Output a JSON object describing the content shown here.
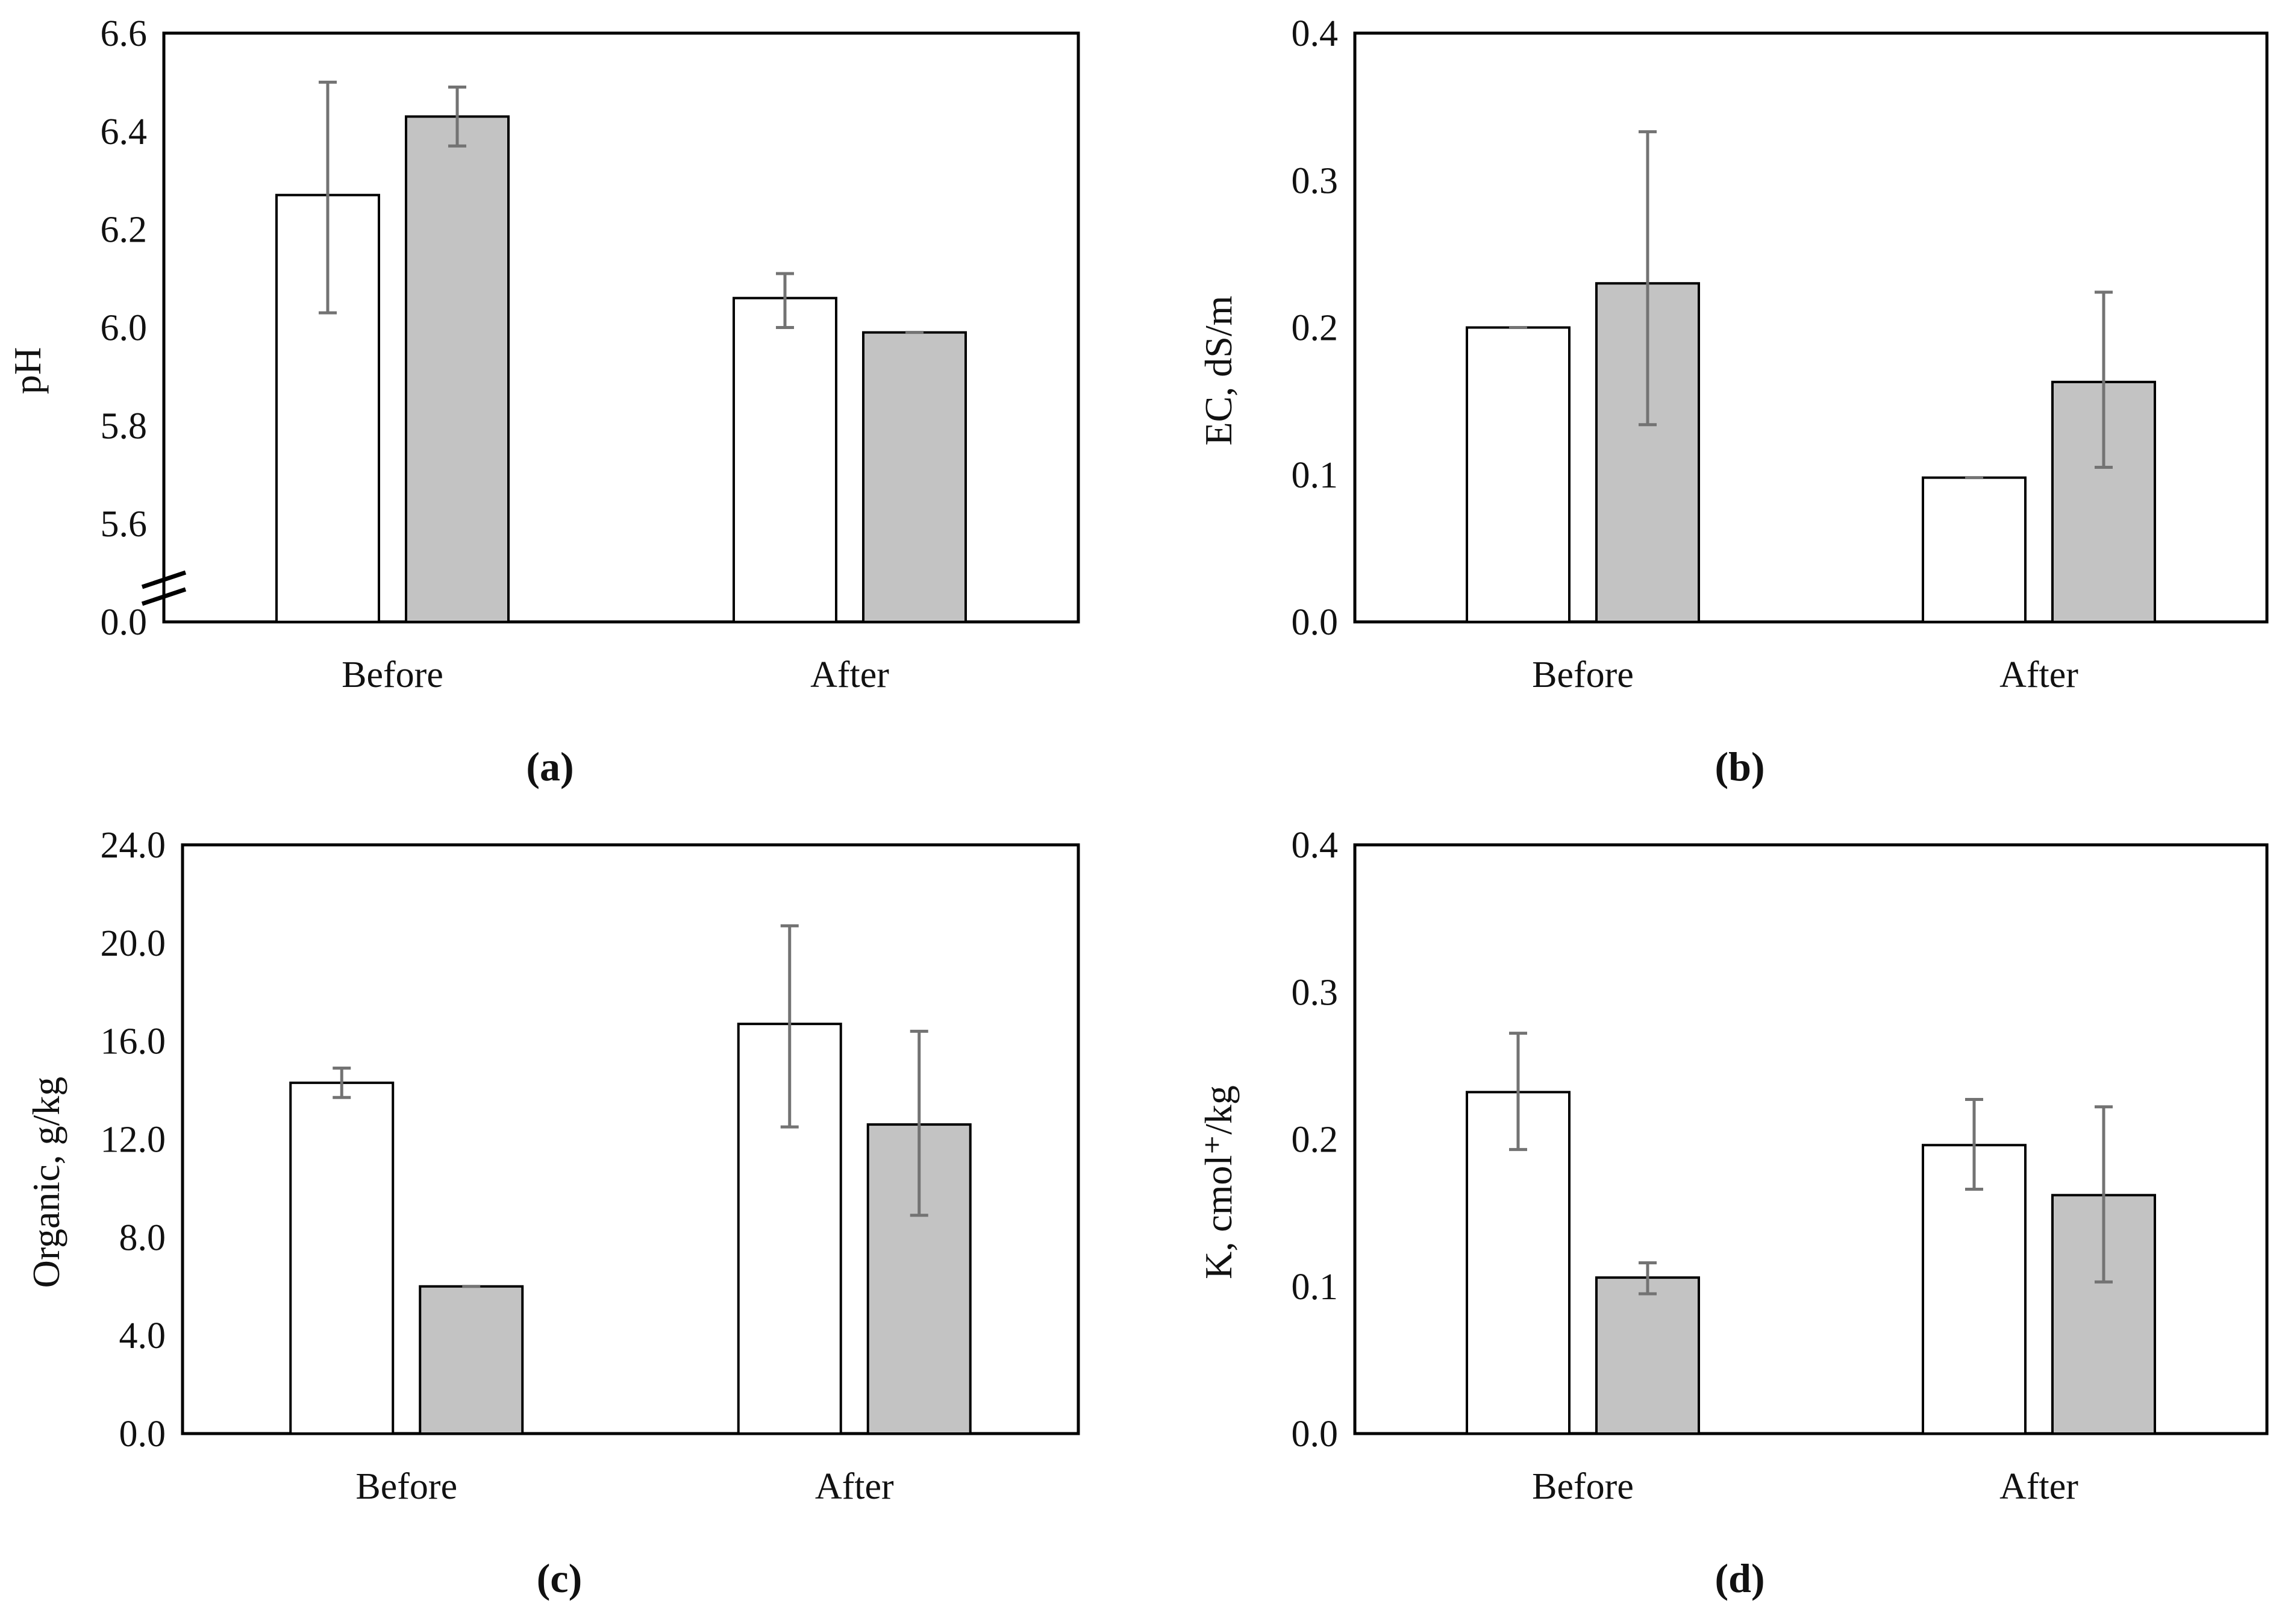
{
  "figure": {
    "background": "#ffffff",
    "colors": {
      "bar_white_fill": "#ffffff",
      "bar_gray_fill": "#c3c3c3",
      "bar_stroke": "#000000",
      "error_bar": "#737373",
      "axis": "#000000",
      "text": "#111111"
    }
  },
  "chart_data": [
    {
      "type": "bar",
      "panel_label": "(a)",
      "title": "",
      "xlabel": "",
      "ylabel": "pH",
      "categories": [
        "Before",
        "After"
      ],
      "yticks": [
        "6.6",
        "6.4",
        "6.2",
        "6.0",
        "5.8",
        "5.6",
        "0.0"
      ],
      "ytick_values": [
        6.6,
        6.4,
        6.2,
        6.0,
        5.8,
        5.6,
        0.0
      ],
      "ylim": [
        0.0,
        6.6
      ],
      "tick_step": 0.2,
      "axis_break": true,
      "break_below_value": 5.5,
      "grid": false,
      "legend": null,
      "series": [
        {
          "name": "white",
          "fill": "bar_white_fill",
          "values": [
            6.27,
            6.06
          ],
          "err_lo": [
            6.03,
            6.0
          ],
          "err_hi": [
            6.5,
            6.11
          ]
        },
        {
          "name": "gray",
          "fill": "bar_gray_fill",
          "values": [
            6.43,
            5.99
          ],
          "err_lo": [
            6.37,
            5.99
          ],
          "err_hi": [
            6.49,
            5.99
          ]
        }
      ]
    },
    {
      "type": "bar",
      "panel_label": "(b)",
      "title": "",
      "xlabel": "",
      "ylabel": "EC, dS/m",
      "categories": [
        "Before",
        "After"
      ],
      "yticks": [
        "0.4",
        "0.3",
        "0.2",
        "0.1",
        "0.0"
      ],
      "ytick_values": [
        0.4,
        0.3,
        0.2,
        0.1,
        0.0
      ],
      "ylim": [
        0.0,
        0.4
      ],
      "tick_step": 0.1,
      "axis_break": false,
      "grid": false,
      "legend": null,
      "series": [
        {
          "name": "white",
          "fill": "bar_white_fill",
          "values": [
            0.2,
            0.098
          ],
          "err_lo": [
            0.2,
            0.098
          ],
          "err_hi": [
            0.2,
            0.098
          ]
        },
        {
          "name": "gray",
          "fill": "bar_gray_fill",
          "values": [
            0.23,
            0.163
          ],
          "err_lo": [
            0.134,
            0.105
          ],
          "err_hi": [
            0.333,
            0.224
          ]
        }
      ]
    },
    {
      "type": "bar",
      "panel_label": "(c)",
      "title": "",
      "xlabel": "",
      "ylabel": "Organic, g/kg",
      "categories": [
        "Before",
        "After"
      ],
      "yticks": [
        "24.0",
        "20.0",
        "16.0",
        "12.0",
        "8.0",
        "4.0",
        "0.0"
      ],
      "ytick_values": [
        24.0,
        20.0,
        16.0,
        12.0,
        8.0,
        4.0,
        0.0
      ],
      "ylim": [
        0.0,
        24.0
      ],
      "tick_step": 4.0,
      "axis_break": false,
      "grid": false,
      "legend": null,
      "series": [
        {
          "name": "white",
          "fill": "bar_white_fill",
          "values": [
            14.3,
            16.7
          ],
          "err_lo": [
            13.7,
            12.5
          ],
          "err_hi": [
            14.9,
            20.7
          ]
        },
        {
          "name": "gray",
          "fill": "bar_gray_fill",
          "values": [
            6.0,
            12.6
          ],
          "err_lo": [
            6.0,
            8.9
          ],
          "err_hi": [
            6.0,
            16.4
          ]
        }
      ]
    },
    {
      "type": "bar",
      "panel_label": "(d)",
      "title": "",
      "xlabel": "",
      "ylabel": "K, cmol⁺/kg",
      "categories": [
        "Before",
        "After"
      ],
      "yticks": [
        "0.4",
        "0.3",
        "0.2",
        "0.1",
        "0.0"
      ],
      "ytick_values": [
        0.4,
        0.3,
        0.2,
        0.1,
        0.0
      ],
      "ylim": [
        0.0,
        0.4
      ],
      "tick_step": 0.1,
      "axis_break": false,
      "grid": false,
      "legend": null,
      "series": [
        {
          "name": "white",
          "fill": "bar_white_fill",
          "values": [
            0.232,
            0.196
          ],
          "err_lo": [
            0.193,
            0.166
          ],
          "err_hi": [
            0.272,
            0.227
          ]
        },
        {
          "name": "gray",
          "fill": "bar_gray_fill",
          "values": [
            0.106,
            0.162
          ],
          "err_lo": [
            0.095,
            0.103
          ],
          "err_hi": [
            0.116,
            0.222
          ]
        }
      ]
    }
  ]
}
